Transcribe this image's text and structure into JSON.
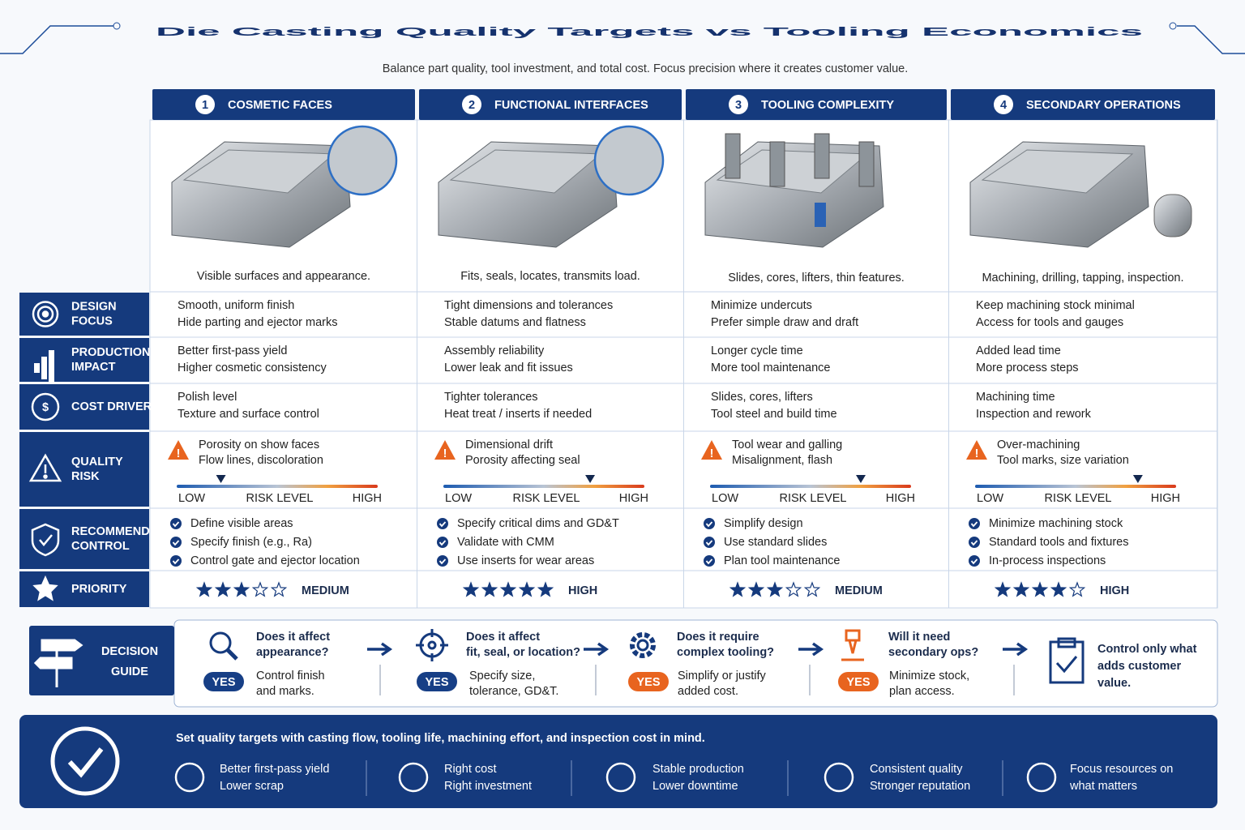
{
  "header": {
    "title": "Die Casting Quality Targets vs Tooling Economics",
    "subtitle": "Balance part quality, tool investment, and total cost. Focus precision where it creates customer value."
  },
  "row_labels": [
    [
      "DESIGN",
      "FOCUS"
    ],
    [
      "PRODUCTION",
      "IMPACT"
    ],
    [
      "COST DRIVER"
    ],
    [
      "QUALITY",
      "RISK"
    ],
    [
      "RECOMMENDED",
      "CONTROL"
    ],
    [
      "PRIORITY"
    ]
  ],
  "risk_scale": {
    "low": "LOW",
    "label": "RISK LEVEL",
    "high": "HIGH",
    "lim": [
      0,
      100
    ]
  },
  "max_stars": 5,
  "columns": [
    {
      "number": "1",
      "title": "COSMETIC FACES",
      "caption": "Visible surfaces and appearance.",
      "design_focus": [
        "Smooth, uniform finish",
        "Hide parting and ejector marks"
      ],
      "production_impact": [
        "Better first-pass yield",
        "Higher cosmetic consistency"
      ],
      "cost_driver": [
        "Polish level",
        "Texture and surface control"
      ],
      "quality_risk": [
        "Porosity on show faces",
        "Flow lines, discoloration"
      ],
      "risk_level": 22,
      "controls": [
        "Define visible areas",
        "Specify finish (e.g., Ra)",
        "Control gate and ejector location"
      ],
      "stars": 3,
      "priority": "MEDIUM"
    },
    {
      "number": "2",
      "title": "FUNCTIONAL INTERFACES",
      "caption": "Fits, seals, locates, transmits load.",
      "design_focus": [
        "Tight dimensions and tolerances",
        "Stable datums and flatness"
      ],
      "production_impact": [
        "Assembly reliability",
        "Lower leak and fit issues"
      ],
      "cost_driver": [
        "Tighter tolerances",
        "Heat treat / inserts if needed"
      ],
      "quality_risk": [
        "Dimensional drift",
        "Porosity affecting seal"
      ],
      "risk_level": 73,
      "controls": [
        "Specify critical dims and GD&T",
        "Validate with CMM",
        "Use inserts for wear areas"
      ],
      "stars": 5,
      "priority": "HIGH"
    },
    {
      "number": "3",
      "title": "TOOLING COMPLEXITY",
      "caption": "Slides, cores, lifters, thin features.",
      "design_focus": [
        "Minimize undercuts",
        "Prefer simple draw and draft"
      ],
      "production_impact": [
        "Longer cycle time",
        "More tool maintenance"
      ],
      "cost_driver": [
        "Slides, cores, lifters",
        "Tool steel and build time"
      ],
      "quality_risk": [
        "Tool wear and galling",
        "Misalignment, flash"
      ],
      "risk_level": 75,
      "controls": [
        "Simplify design",
        "Use standard slides",
        "Plan tool maintenance"
      ],
      "stars": 3,
      "priority": "MEDIUM"
    },
    {
      "number": "4",
      "title": "SECONDARY OPERATIONS",
      "caption": "Machining, drilling, tapping, inspection.",
      "design_focus": [
        "Keep machining stock minimal",
        "Access for tools and gauges"
      ],
      "production_impact": [
        "Added lead time",
        "More process steps"
      ],
      "cost_driver": [
        "Machining time",
        "Inspection and rework"
      ],
      "quality_risk": [
        "Over-machining",
        "Tool marks, size variation"
      ],
      "risk_level": 81,
      "controls": [
        "Minimize machining stock",
        "Standard tools and fixtures",
        "In-process inspections"
      ],
      "stars": 4,
      "priority": "HIGH"
    }
  ],
  "decision_guide": {
    "title": [
      "DECISION",
      "GUIDE"
    ],
    "steps": [
      {
        "question": [
          "Does it affect",
          "appearance?"
        ],
        "answer": "YES",
        "color": "#173f86",
        "action": [
          "Control finish",
          "and marks."
        ]
      },
      {
        "question": [
          "Does it affect",
          "fit, seal, or location?"
        ],
        "answer": "YES",
        "color": "#173f86",
        "action": [
          "Specify size,",
          "tolerance, GD&T."
        ]
      },
      {
        "question": [
          "Does it require",
          "complex tooling?"
        ],
        "answer": "YES",
        "color": "#e8641f",
        "action": [
          "Simplify or justify",
          "added cost."
        ]
      },
      {
        "question": [
          "Will it need",
          "secondary ops?"
        ],
        "answer": "YES",
        "color": "#e8641f",
        "action": [
          "Minimize stock,",
          "plan access."
        ]
      }
    ],
    "conclusion": [
      "Control only what",
      "adds customer",
      "value."
    ]
  },
  "banner": {
    "heading": "Set quality targets with casting flow, tooling life, machining effort, and inspection cost in mind.",
    "items": [
      [
        "Better first-pass yield",
        "Lower scrap"
      ],
      [
        "Right cost",
        "Right investment"
      ],
      [
        "Stable production",
        "Lower downtime"
      ],
      [
        "Consistent quality",
        "Stronger reputation"
      ],
      [
        "Focus resources on",
        "what matters"
      ]
    ]
  }
}
